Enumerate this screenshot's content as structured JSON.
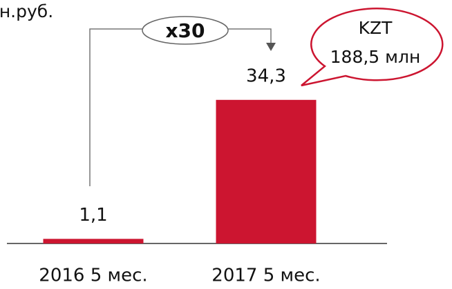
{
  "chart_data": {
    "type": "bar",
    "title": "млн.руб.",
    "categories": [
      "2016 5 мес.",
      "2017 5 мес."
    ],
    "values": [
      1.1,
      34.3
    ],
    "value_labels": [
      "1,1",
      "34,3"
    ],
    "color": "#cc1530",
    "annotations": [
      "x30",
      "KZT",
      "188,5 млн"
    ]
  }
}
